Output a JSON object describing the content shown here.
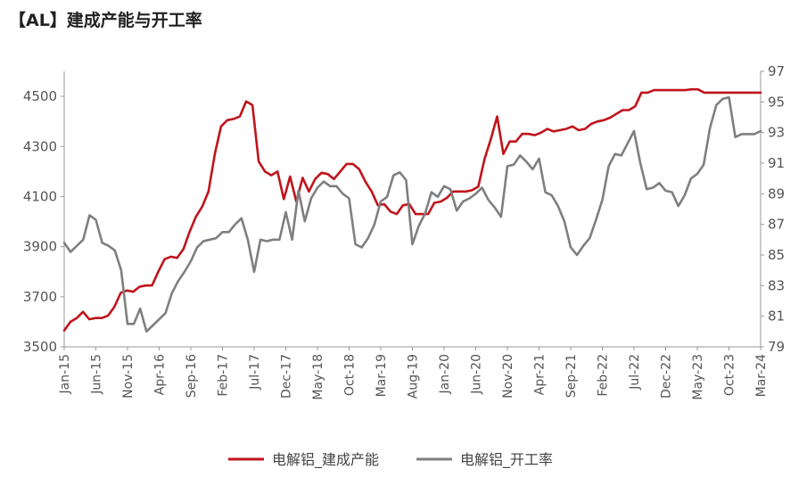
{
  "chart_data": {
    "type": "line",
    "title": "【AL】建成产能与开工率",
    "x_tick_labels": [
      "Jan-15",
      "Jun-15",
      "Nov-15",
      "Apr-16",
      "Sep-16",
      "Feb-17",
      "Jul-17",
      "Dec-17",
      "May-18",
      "Oct-18",
      "Mar-19",
      "Aug-19",
      "Jan-20",
      "Jun-20",
      "Nov-20",
      "Apr-21",
      "Sep-21",
      "Feb-22",
      "Jul-22",
      "Dec-22",
      "May-23",
      "Oct-23",
      "Mar-24"
    ],
    "y_left": {
      "ticks": [
        3500,
        3700,
        3900,
        4100,
        4300,
        4500
      ],
      "range": [
        3500,
        4600
      ]
    },
    "y_right": {
      "ticks": [
        79,
        81,
        83,
        85,
        87,
        89,
        91,
        93,
        95,
        97
      ],
      "range": [
        79,
        97
      ]
    },
    "grid": false,
    "legend_position": "bottom",
    "series": [
      {
        "name": "电解铝_建成产能",
        "axis": "left",
        "color": "#c0141c",
        "values": [
          3565,
          3600,
          3615,
          3640,
          3610,
          3615,
          3615,
          3625,
          3660,
          3715,
          3725,
          3720,
          3740,
          3745,
          3745,
          3800,
          3850,
          3860,
          3855,
          3890,
          3960,
          4020,
          4060,
          4120,
          4270,
          4380,
          4405,
          4410,
          4420,
          4480,
          4465,
          4240,
          4200,
          4185,
          4200,
          4090,
          4180,
          4080,
          4175,
          4120,
          4170,
          4195,
          4190,
          4170,
          4200,
          4230,
          4230,
          4210,
          4160,
          4120,
          4065,
          4070,
          4040,
          4030,
          4065,
          4070,
          4030,
          4030,
          4030,
          4075,
          4080,
          4095,
          4120,
          4120,
          4120,
          4125,
          4140,
          4250,
          4330,
          4420,
          4270,
          4320,
          4320,
          4350,
          4350,
          4345,
          4355,
          4370,
          4360,
          4365,
          4370,
          4380,
          4365,
          4370,
          4390,
          4400,
          4405,
          4415,
          4430,
          4445,
          4445,
          4460,
          4515,
          4515,
          4525,
          4525,
          4525,
          4525,
          4525,
          4525,
          4528,
          4528,
          4515,
          4515,
          4515,
          4515,
          4515,
          4515,
          4515,
          4515,
          4515,
          4515
        ],
        "marks": [
          {
            "x": "Jan-15",
            "y": 3565
          },
          {
            "x": "Mar-15",
            "y": 3615
          },
          {
            "x": "Jun-15",
            "y": 3610
          },
          {
            "x": "Nov-15",
            "y": 3725
          },
          {
            "x": "Apr-16",
            "y": 3800
          },
          {
            "x": "Jun-16",
            "y": 3860
          },
          {
            "x": "Sep-16",
            "y": 3890
          },
          {
            "x": "Dec-16",
            "y": 4060
          },
          {
            "x": "Feb-17",
            "y": 4270
          },
          {
            "x": "Mar-17",
            "y": 4380
          },
          {
            "x": "Jun-17",
            "y": 4480
          },
          {
            "x": "Jul-17",
            "y": 4465
          },
          {
            "x": "Aug-17",
            "y": 4240
          },
          {
            "x": "Nov-17",
            "y": 4200
          },
          {
            "x": "Dec-17",
            "y": 4090
          },
          {
            "x": "Jan-18",
            "y": 4180
          },
          {
            "x": "Feb-18",
            "y": 4080
          },
          {
            "x": "Mar-18",
            "y": 4175
          },
          {
            "x": "Apr-18",
            "y": 4120
          },
          {
            "x": "Jun-18",
            "y": 4195
          },
          {
            "x": "Oct-18",
            "y": 4230
          },
          {
            "x": "Dec-18",
            "y": 4160
          },
          {
            "x": "Feb-19",
            "y": 4065
          },
          {
            "x": "May-19",
            "y": 4030
          },
          {
            "x": "Jul-19",
            "y": 4070
          },
          {
            "x": "Aug-19",
            "y": 4030
          },
          {
            "x": "Nov-19",
            "y": 4030
          },
          {
            "x": "Jan-20",
            "y": 4080
          },
          {
            "x": "Apr-20",
            "y": 4120
          },
          {
            "x": "Jun-20",
            "y": 4125
          },
          {
            "x": "Aug-20",
            "y": 4250
          },
          {
            "x": "Oct-20",
            "y": 4420
          },
          {
            "x": "Nov-20",
            "y": 4270
          },
          {
            "x": "Feb-21",
            "y": 4350
          },
          {
            "x": "Jun-21",
            "y": 4370
          },
          {
            "x": "Sep-21",
            "y": 4380
          },
          {
            "x": "Jan-22",
            "y": 4390
          },
          {
            "x": "Jun-22",
            "y": 4445
          },
          {
            "x": "Aug-22",
            "y": 4515
          },
          {
            "x": "Dec-22",
            "y": 4525
          },
          {
            "x": "May-23",
            "y": 4528
          },
          {
            "x": "Jun-23",
            "y": 4515
          },
          {
            "x": "Mar-24",
            "y": 4515
          }
        ]
      },
      {
        "name": "电解铝_开工率",
        "axis": "right",
        "color": "#7f7f7f",
        "values": [
          85.8,
          85.2,
          85.6,
          86.0,
          87.6,
          87.3,
          85.8,
          85.6,
          85.3,
          84.0,
          80.5,
          80.5,
          81.5,
          80.0,
          80.4,
          80.8,
          81.2,
          82.5,
          83.3,
          83.9,
          84.6,
          85.5,
          85.9,
          86.0,
          86.1,
          86.5,
          86.5,
          87.0,
          87.4,
          86.0,
          83.9,
          86.0,
          85.9,
          86.0,
          86.0,
          87.8,
          86.0,
          89.2,
          87.2,
          88.7,
          89.4,
          89.8,
          89.5,
          89.5,
          89.0,
          88.7,
          85.7,
          85.5,
          86.1,
          87.0,
          88.5,
          88.8,
          90.2,
          90.4,
          89.9,
          85.7,
          86.9,
          87.7,
          89.1,
          88.8,
          89.5,
          89.3,
          87.9,
          88.5,
          88.7,
          89.0,
          89.4,
          88.6,
          88.1,
          87.5,
          90.8,
          90.9,
          91.5,
          91.1,
          90.6,
          91.3,
          89.1,
          88.9,
          88.2,
          87.2,
          85.5,
          85.0,
          85.6,
          86.1,
          87.3,
          88.6,
          90.8,
          91.6,
          91.5,
          92.3,
          93.1,
          91.0,
          89.3,
          89.4,
          89.7,
          89.2,
          89.1,
          88.2,
          88.9,
          90.0,
          90.3,
          90.9,
          93.3,
          94.8,
          95.2,
          95.3,
          92.7,
          92.9,
          92.9,
          92.9,
          93.1
        ],
        "marks": [
          {
            "x": "Jan-15",
            "y": 85.8
          },
          {
            "x": "May-15",
            "y": 87.6
          },
          {
            "x": "Nov-15",
            "y": 80.5
          },
          {
            "x": "Feb-16",
            "y": 80.0
          },
          {
            "x": "Sep-16",
            "y": 84.6
          },
          {
            "x": "Jul-17",
            "y": 87.4
          },
          {
            "x": "Aug-17",
            "y": 83.9
          },
          {
            "x": "Dec-17",
            "y": 87.8
          },
          {
            "x": "Jan-18",
            "y": 86.0
          },
          {
            "x": "Feb-18",
            "y": 89.2
          },
          {
            "x": "Mar-18",
            "y": 87.2
          },
          {
            "x": "Jun-18",
            "y": 89.8
          },
          {
            "x": "Nov-18",
            "y": 88.7
          },
          {
            "x": "Dec-18",
            "y": 85.7
          },
          {
            "x": "Jul-19",
            "y": 90.4
          },
          {
            "x": "Sep-19",
            "y": 85.7
          },
          {
            "x": "Feb-20",
            "y": 89.5
          },
          {
            "x": "Apr-20",
            "y": 87.9
          },
          {
            "x": "Jul-20",
            "y": 89.4
          },
          {
            "x": "Oct-20",
            "y": 87.5
          },
          {
            "x": "Nov-20",
            "y": 90.8
          },
          {
            "x": "Jan-21",
            "y": 91.5
          },
          {
            "x": "Apr-21",
            "y": 90.6
          },
          {
            "x": "May-21",
            "y": 91.3
          },
          {
            "x": "Oct-21",
            "y": 85.0
          },
          {
            "x": "Apr-22",
            "y": 90.8
          },
          {
            "x": "Jul-22",
            "y": 93.1
          },
          {
            "x": "Sep-22",
            "y": 89.3
          },
          {
            "x": "Jan-23",
            "y": 88.2
          },
          {
            "x": "Jun-23",
            "y": 90.9
          },
          {
            "x": "Jul-23",
            "y": 93.3
          },
          {
            "x": "Oct-23",
            "y": 95.3
          },
          {
            "x": "Nov-23",
            "y": 92.7
          },
          {
            "x": "Mar-24",
            "y": 93.1
          }
        ]
      }
    ]
  }
}
